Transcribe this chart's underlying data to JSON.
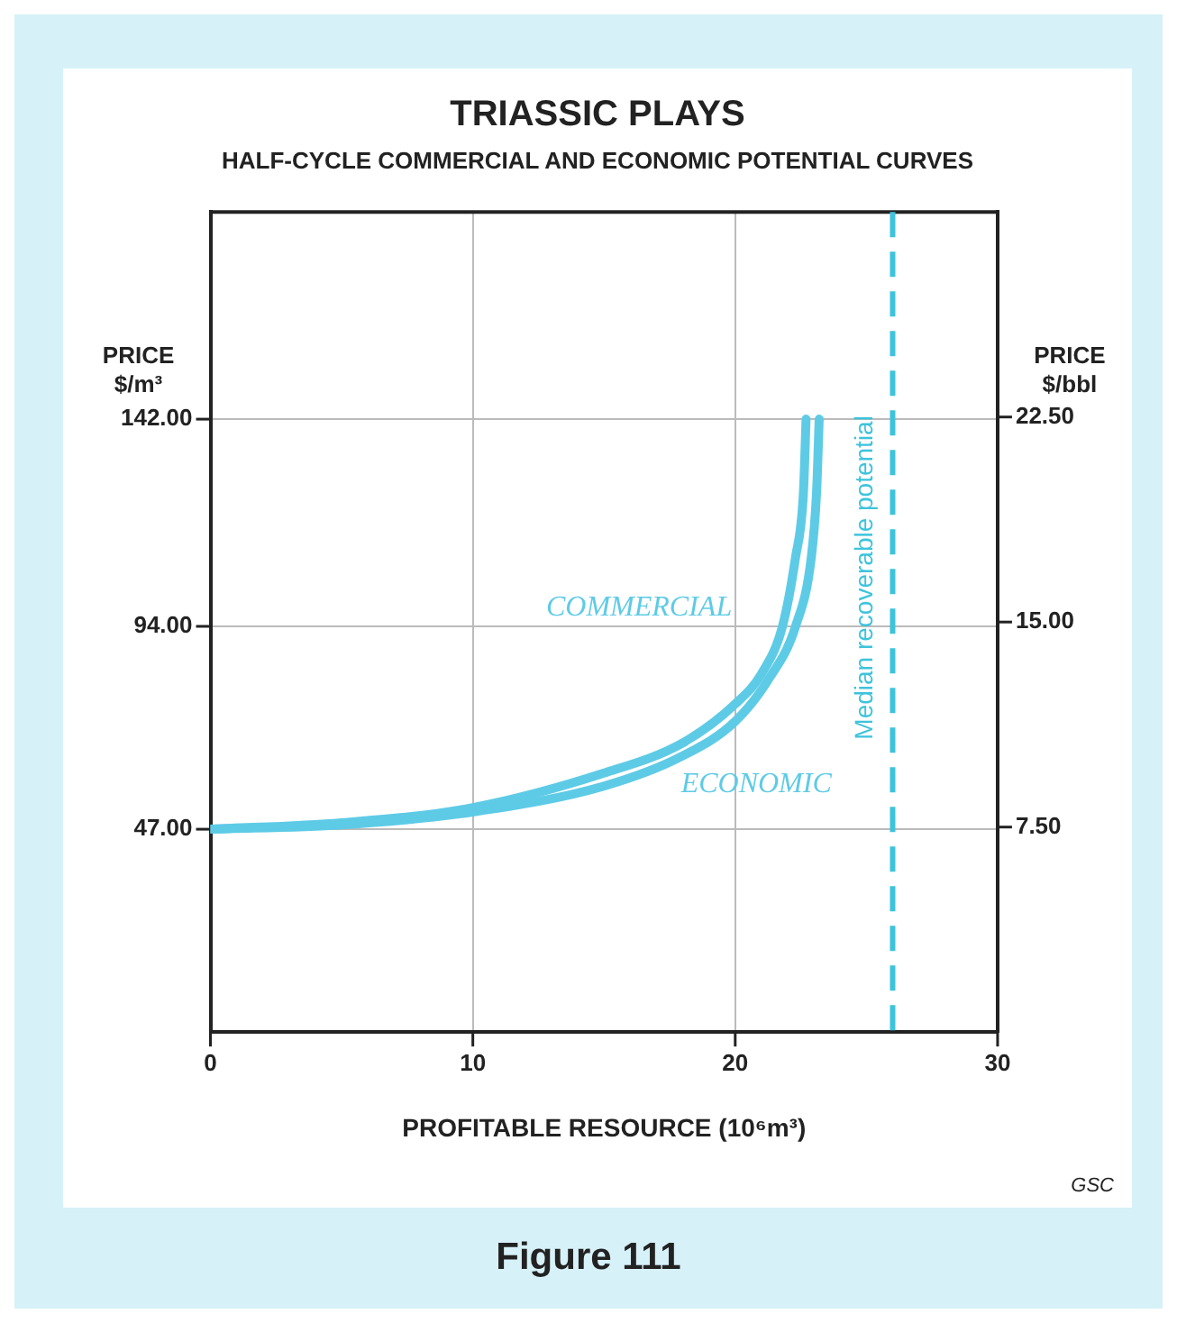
{
  "chart_data": {
    "type": "line",
    "title": "TRIASSIC PLAYS",
    "subtitle": "HALF-CYCLE COMMERCIAL AND ECONOMIC POTENTIAL CURVES",
    "xlabel": "PROFITABLE RESOURCE (10⁶m³)",
    "ylabel": "PRICE $/m³",
    "y2label": "PRICE $/bbl",
    "xlim": [
      0,
      30
    ],
    "xticks": [
      0,
      10,
      20,
      30
    ],
    "ylim": [
      0,
      190
    ],
    "yticks": [
      {
        "value": 47,
        "label": "47.00"
      },
      {
        "value": 94,
        "label": "94.00"
      },
      {
        "value": 142,
        "label": "142.00"
      }
    ],
    "y2lim": [
      0,
      30
    ],
    "y2ticks": [
      {
        "value": 7.5,
        "label": "7.50"
      },
      {
        "value": 15,
        "label": "15.00"
      },
      {
        "value": 22.5,
        "label": "22.50"
      }
    ],
    "grid": true,
    "legend": false,
    "marker": "none",
    "line_style": "solid",
    "series": [
      {
        "name": "COMMERCIAL",
        "color": "#5ecbe6",
        "x": [
          0,
          5,
          10,
          15,
          18,
          20,
          21,
          21.8,
          22.3,
          22.6,
          22.7
        ],
        "values": [
          47,
          48.5,
          52,
          60,
          67,
          76,
          83,
          94,
          110,
          125,
          142
        ]
      },
      {
        "name": "ECONOMIC",
        "color": "#5ecbe6",
        "x": [
          0,
          5,
          10,
          15,
          18,
          20,
          21.3,
          22.3,
          22.9,
          23.1,
          23.2
        ],
        "values": [
          47,
          48,
          51,
          57,
          64,
          72,
          82,
          94,
          110,
          125,
          142
        ]
      }
    ],
    "ref_lines": [
      {
        "axis": "x",
        "value": 26,
        "label": "Median recoverable potential",
        "color": "#3ec3dc",
        "line_style": "dashed"
      }
    ],
    "annotations": [
      "GSC",
      "Figure 111"
    ]
  }
}
